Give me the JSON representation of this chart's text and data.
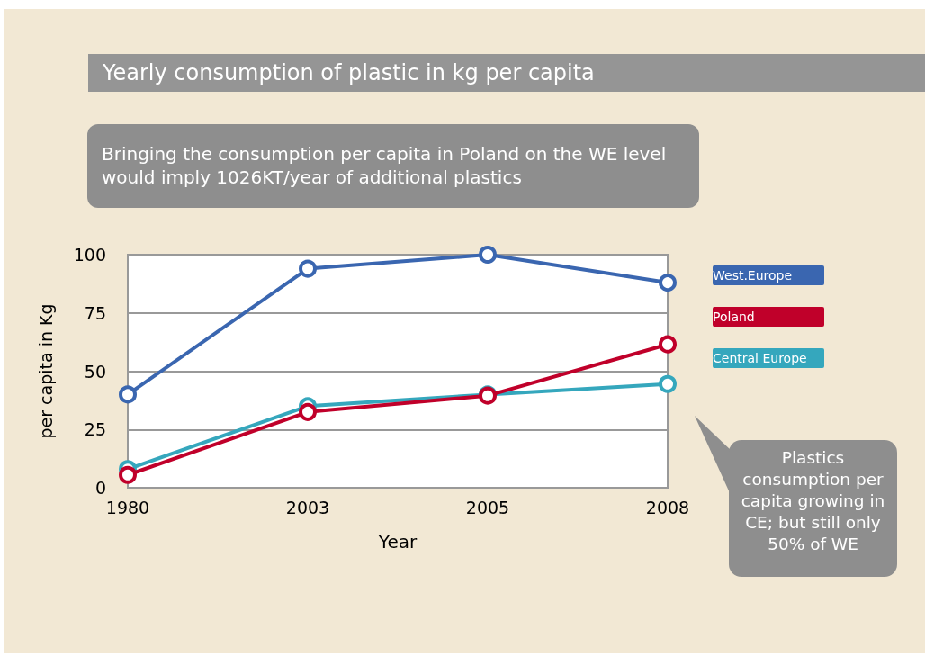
{
  "chart_data": {
    "type": "line",
    "title": "Yearly consumption of plastic in kg per capita",
    "xlabel": "Year",
    "ylabel": "per capita in Kg",
    "annotations": [
      "Bringing the consumption per capita in Poland on the WE level would imply 1026KT/year of additional plastics",
      "Plastics consumption per capita growing in CE; but still only 50% of WE"
    ],
    "categories": [
      "1980",
      "2003",
      "2005",
      "2008"
    ],
    "series": [
      {
        "name": "West.Europe",
        "color": "#3a66b0",
        "values": [
          40,
          94,
          100,
          88
        ]
      },
      {
        "name": "Poland",
        "color": "#c0002a",
        "values": [
          5.5,
          32.5,
          39.5,
          61.5
        ]
      },
      {
        "name": "Central Europe",
        "color": "#35a7bd",
        "values": [
          8,
          35,
          40,
          44.5
        ]
      }
    ],
    "ylim": [
      0,
      100
    ],
    "yticks": [
      0,
      25,
      50,
      75,
      100
    ],
    "grid": "y",
    "legend": "right",
    "marker": "circle",
    "line_style": "solid"
  }
}
